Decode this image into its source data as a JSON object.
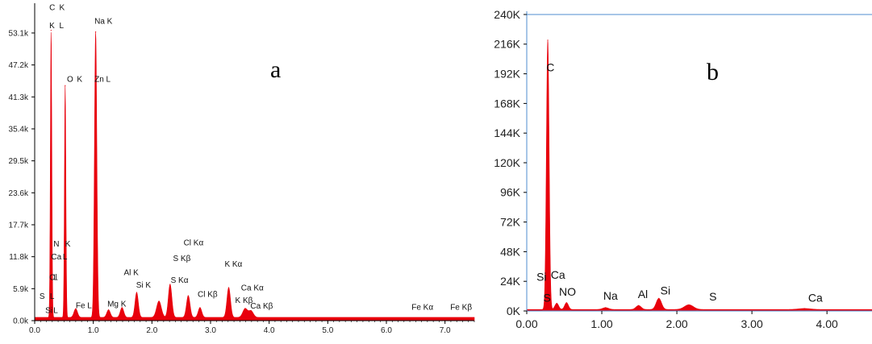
{
  "chart_data": [
    {
      "type": "area",
      "panel_label": "a",
      "color": "#e8000c",
      "xlim": [
        0,
        7.5
      ],
      "ylim": [
        0,
        58000
      ],
      "x_ticks": [
        {
          "v": 0,
          "t": "0.0"
        },
        {
          "v": 1,
          "t": "1.0"
        },
        {
          "v": 2,
          "t": "2.0"
        },
        {
          "v": 3,
          "t": "3.0"
        },
        {
          "v": 4,
          "t": "4.0"
        },
        {
          "v": 5,
          "t": "5.0"
        },
        {
          "v": 6,
          "t": "6.0"
        },
        {
          "v": 7,
          "t": "7.0"
        }
      ],
      "y_ticks": [
        {
          "v": 0,
          "t": "0.0k"
        },
        {
          "v": 5900,
          "t": "5.9k"
        },
        {
          "v": 11800,
          "t": "11.8k"
        },
        {
          "v": 17700,
          "t": "17.7k"
        },
        {
          "v": 23600,
          "t": "23.6k"
        },
        {
          "v": 29500,
          "t": "29.5k"
        },
        {
          "v": 35400,
          "t": "35.4k"
        },
        {
          "v": 41300,
          "t": "41.3k"
        },
        {
          "v": 47200,
          "t": "47.2k"
        },
        {
          "v": 53100,
          "t": "53.1k"
        }
      ],
      "baseline": 600,
      "peaks": [
        {
          "x": 0.28,
          "y": 53000,
          "w": 0.012
        },
        {
          "x": 0.52,
          "y": 42800,
          "w": 0.012
        },
        {
          "x": 1.04,
          "y": 52700,
          "w": 0.02
        },
        {
          "x": 0.7,
          "y": 1600,
          "w": 0.03
        },
        {
          "x": 1.26,
          "y": 1400,
          "w": 0.03
        },
        {
          "x": 1.49,
          "y": 1800,
          "w": 0.03
        },
        {
          "x": 1.74,
          "y": 4600,
          "w": 0.028
        },
        {
          "x": 2.12,
          "y": 3000,
          "w": 0.04
        },
        {
          "x": 2.31,
          "y": 6100,
          "w": 0.03
        },
        {
          "x": 2.62,
          "y": 4000,
          "w": 0.03
        },
        {
          "x": 2.82,
          "y": 1800,
          "w": 0.03
        },
        {
          "x": 3.31,
          "y": 5500,
          "w": 0.03
        },
        {
          "x": 3.59,
          "y": 1600,
          "w": 0.04
        },
        {
          "x": 3.69,
          "y": 1200,
          "w": 0.04
        }
      ],
      "annotations": [
        {
          "x": 0.25,
          "y": 57300,
          "t": "C"
        },
        {
          "x": 0.42,
          "y": 57300,
          "t": "K"
        },
        {
          "x": 0.25,
          "y": 54000,
          "t": "K"
        },
        {
          "x": 0.42,
          "y": 54000,
          "t": "L"
        },
        {
          "x": 1.02,
          "y": 54800,
          "t": "Na K"
        },
        {
          "x": 0.55,
          "y": 44100,
          "t": "O"
        },
        {
          "x": 0.72,
          "y": 44100,
          "t": "K"
        },
        {
          "x": 1.02,
          "y": 44100,
          "t": "Zn L"
        },
        {
          "x": 0.32,
          "y": 13700,
          "t": "N"
        },
        {
          "x": 0.52,
          "y": 13700,
          "t": "K"
        },
        {
          "x": 0.28,
          "y": 11300,
          "t": "Ca"
        },
        {
          "x": 0.48,
          "y": 11300,
          "t": "L"
        },
        {
          "x": 0.25,
          "y": 7500,
          "t": "Cl"
        },
        {
          "x": 0.32,
          "y": 7500,
          "t": "L"
        },
        {
          "x": 0.08,
          "y": 4000,
          "t": "S"
        },
        {
          "x": 0.26,
          "y": 4000,
          "t": "L"
        },
        {
          "x": 0.18,
          "y": 1400,
          "t": "Si"
        },
        {
          "x": 0.32,
          "y": 1400,
          "t": "L"
        },
        {
          "x": 0.7,
          "y": 2300,
          "t": "Fe L"
        },
        {
          "x": 1.24,
          "y": 2600,
          "t": "Mg K"
        },
        {
          "x": 1.52,
          "y": 8400,
          "t": "Al K"
        },
        {
          "x": 1.73,
          "y": 6100,
          "t": "Si K"
        },
        {
          "x": 2.32,
          "y": 7000,
          "t": "S  Kα"
        },
        {
          "x": 2.54,
          "y": 13900,
          "t": "Cl Kα"
        },
        {
          "x": 2.36,
          "y": 11000,
          "t": "S  Kβ"
        },
        {
          "x": 2.78,
          "y": 4400,
          "t": "Cl Kβ"
        },
        {
          "x": 3.24,
          "y": 10000,
          "t": "K  Kα"
        },
        {
          "x": 3.52,
          "y": 5600,
          "t": "Ca Kα"
        },
        {
          "x": 3.42,
          "y": 3300,
          "t": "K  Kβ"
        },
        {
          "x": 3.68,
          "y": 2200,
          "t": "Ca Kβ"
        },
        {
          "x": 6.43,
          "y": 2000,
          "t": "Fe Kα"
        },
        {
          "x": 7.09,
          "y": 2000,
          "t": "Fe Kβ"
        }
      ]
    },
    {
      "type": "area",
      "panel_label": "b",
      "color": "#e8000c",
      "xlim": [
        0,
        4.6
      ],
      "ylim": [
        0,
        240000
      ],
      "x_ticks": [
        {
          "v": 0,
          "t": "0.00"
        },
        {
          "v": 1,
          "t": "1.00"
        },
        {
          "v": 2,
          "t": "2.00"
        },
        {
          "v": 3,
          "t": "3.00"
        },
        {
          "v": 4,
          "t": "4.00"
        }
      ],
      "y_ticks": [
        {
          "v": 0,
          "t": "0K"
        },
        {
          "v": 24000,
          "t": "24K"
        },
        {
          "v": 48000,
          "t": "48K"
        },
        {
          "v": 72000,
          "t": "72K"
        },
        {
          "v": 96000,
          "t": "96K"
        },
        {
          "v": 120000,
          "t": "120K"
        },
        {
          "v": 144000,
          "t": "144K"
        },
        {
          "v": 168000,
          "t": "168K"
        },
        {
          "v": 192000,
          "t": "192K"
        },
        {
          "v": 216000,
          "t": "216K"
        },
        {
          "v": 240000,
          "t": "240K"
        }
      ],
      "baseline": 1200,
      "peaks": [
        {
          "x": 0.28,
          "y": 218000,
          "w": 0.018
        },
        {
          "x": 0.4,
          "y": 5000,
          "w": 0.025
        },
        {
          "x": 0.53,
          "y": 5500,
          "w": 0.025
        },
        {
          "x": 1.05,
          "y": 1500,
          "w": 0.04
        },
        {
          "x": 1.49,
          "y": 3200,
          "w": 0.035
        },
        {
          "x": 1.76,
          "y": 9000,
          "w": 0.035
        },
        {
          "x": 2.16,
          "y": 3800,
          "w": 0.06
        },
        {
          "x": 3.7,
          "y": 800,
          "w": 0.08
        }
      ],
      "annotations": [
        {
          "x": 0.26,
          "y": 194000,
          "t": "C"
        },
        {
          "x": 0.13,
          "y": 24500,
          "t": "Si"
        },
        {
          "x": 0.32,
          "y": 26000,
          "t": "Ca"
        },
        {
          "x": 0.22,
          "y": 7500,
          "t": "S"
        },
        {
          "x": 0.43,
          "y": 12500,
          "t": "NO"
        },
        {
          "x": 1.02,
          "y": 9000,
          "t": "Na"
        },
        {
          "x": 1.48,
          "y": 10500,
          "t": "Al"
        },
        {
          "x": 1.78,
          "y": 13500,
          "t": "Si"
        },
        {
          "x": 2.43,
          "y": 8500,
          "t": "S"
        },
        {
          "x": 3.75,
          "y": 7500,
          "t": "Ca"
        }
      ]
    }
  ]
}
